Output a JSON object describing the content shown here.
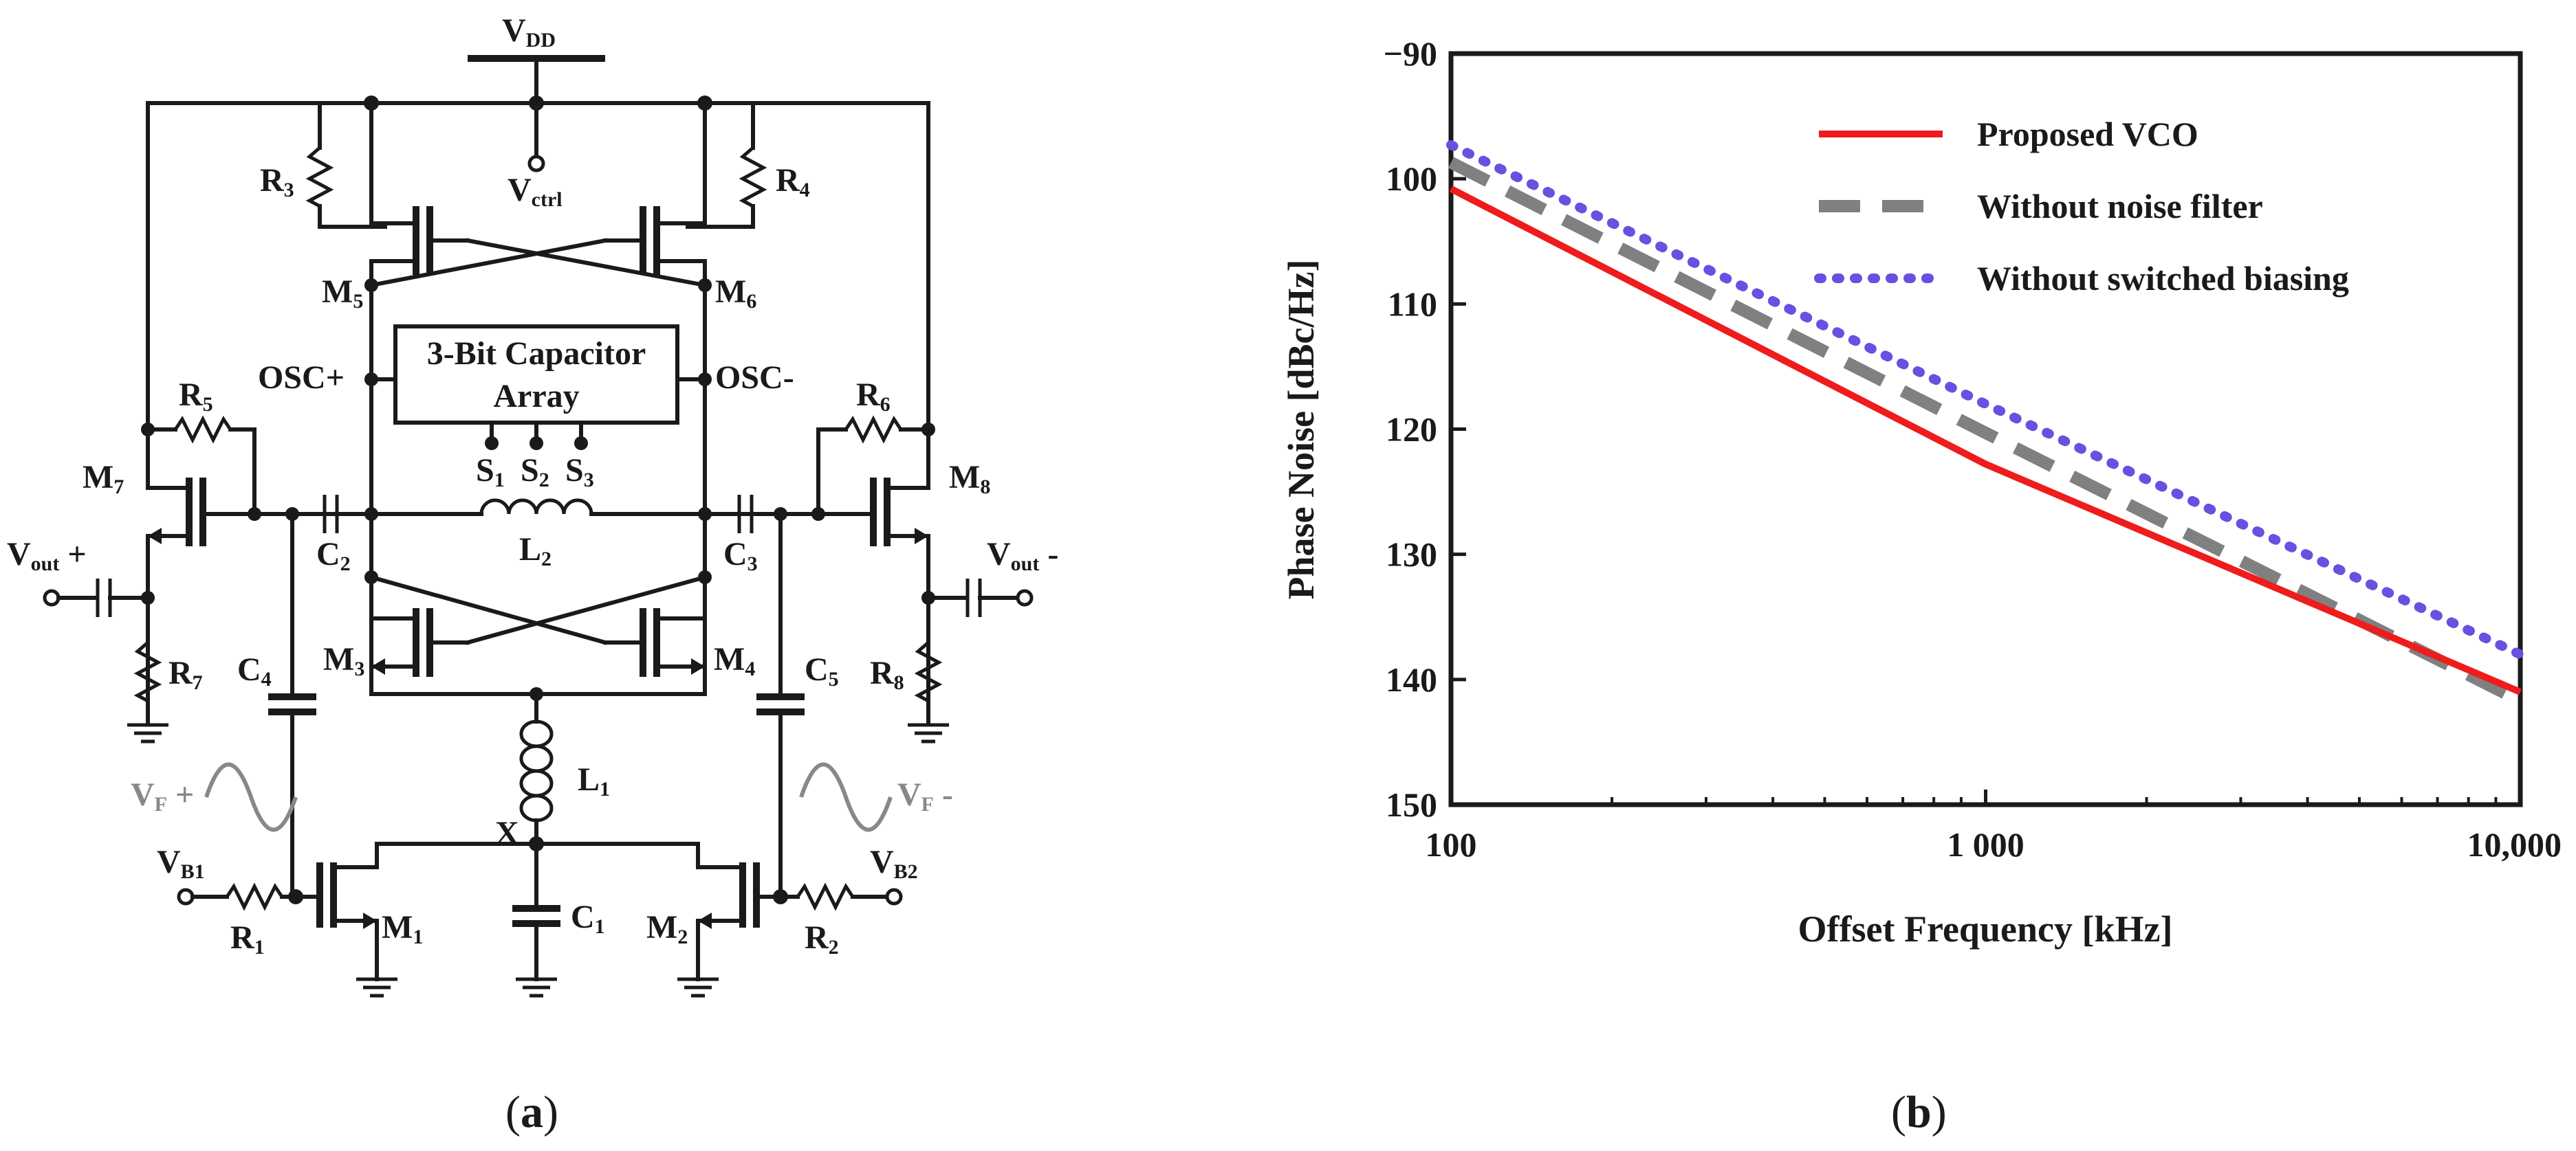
{
  "circuit": {
    "vdd": {
      "main": "V",
      "sub": "DD"
    },
    "vctrl": {
      "main": "V",
      "sub": "ctrl"
    },
    "r3": {
      "main": "R",
      "sub": "3"
    },
    "r4": {
      "main": "R",
      "sub": "4"
    },
    "r5": {
      "main": "R",
      "sub": "5"
    },
    "r6": {
      "main": "R",
      "sub": "6"
    },
    "r7": {
      "main": "R",
      "sub": "7"
    },
    "r8": {
      "main": "R",
      "sub": "8"
    },
    "r1": {
      "main": "R",
      "sub": "1"
    },
    "r2": {
      "main": "R",
      "sub": "2"
    },
    "m1": {
      "main": "M",
      "sub": "1"
    },
    "m2": {
      "main": "M",
      "sub": "2"
    },
    "m3": {
      "main": "M",
      "sub": "3"
    },
    "m4": {
      "main": "M",
      "sub": "4"
    },
    "m5": {
      "main": "M",
      "sub": "5"
    },
    "m6": {
      "main": "M",
      "sub": "6"
    },
    "m7": {
      "main": "M",
      "sub": "7"
    },
    "m8": {
      "main": "M",
      "sub": "8"
    },
    "c1": {
      "main": "C",
      "sub": "1"
    },
    "c2": {
      "main": "C",
      "sub": "2"
    },
    "c3": {
      "main": "C",
      "sub": "3"
    },
    "c4": {
      "main": "C",
      "sub": "4"
    },
    "c5": {
      "main": "C",
      "sub": "5"
    },
    "l1": {
      "main": "L",
      "sub": "1"
    },
    "l2": {
      "main": "L",
      "sub": "2"
    },
    "s1": {
      "main": "S",
      "sub": "1"
    },
    "s2": {
      "main": "S",
      "sub": "2"
    },
    "s3": {
      "main": "S",
      "sub": "3"
    },
    "osc_plus": "OSC+",
    "osc_minus": "OSC-",
    "cap_array_line1": "3-Bit Capacitor",
    "cap_array_line2": "Array",
    "vout_plus": {
      "main": "V",
      "sub": "out",
      "suffix": " +"
    },
    "vout_minus": {
      "main": "V",
      "sub": "out",
      "suffix": " -"
    },
    "vf_plus": {
      "main": "V",
      "sub": "F",
      "suffix": " +"
    },
    "vf_minus": {
      "main": "V",
      "sub": "F",
      "suffix": " -"
    },
    "vb1": {
      "main": "V",
      "sub": "B1"
    },
    "vb2": {
      "main": "V",
      "sub": "B2"
    },
    "node_x": "X"
  },
  "captions": {
    "a": {
      "open": "(",
      "letter": "a",
      "close": ")"
    },
    "b": {
      "open": "(",
      "letter": "b",
      "close": ")"
    }
  },
  "chart_data": {
    "type": "line",
    "title": "",
    "xlabel": "Offset Frequency [kHz]",
    "ylabel": "Phase Noise [dBc/Hz]",
    "xscale": "log",
    "xlim": [
      100,
      10000
    ],
    "ylim": [
      -150,
      -90
    ],
    "xticks": [
      100,
      1000,
      10000
    ],
    "xtick_labels": [
      "100",
      "1 000",
      "10,000"
    ],
    "yticks": [
      -90,
      -100,
      -110,
      -120,
      -130,
      -140,
      -150
    ],
    "ytick_labels": [
      "−90",
      "100",
      "110",
      "120",
      "130",
      "140",
      "150"
    ],
    "grid": false,
    "legend_position": "top-right",
    "series": [
      {
        "name": "Proposed VCO",
        "color": "#ee1c1c",
        "style": "solid",
        "x": [
          100,
          1000,
          10000
        ],
        "y": [
          -100.8,
          -122.8,
          -141.0
        ]
      },
      {
        "name": "Without noise filter",
        "color": "#808080",
        "style": "dashed",
        "x": [
          100,
          1000,
          10000
        ],
        "y": [
          -98.7,
          -120.3,
          -141.7
        ]
      },
      {
        "name": "Without switched biasing",
        "color": "#6a4fe0",
        "style": "dotted",
        "x": [
          100,
          1000,
          10000
        ],
        "y": [
          -97.3,
          -118.0,
          -138.0
        ]
      }
    ]
  }
}
